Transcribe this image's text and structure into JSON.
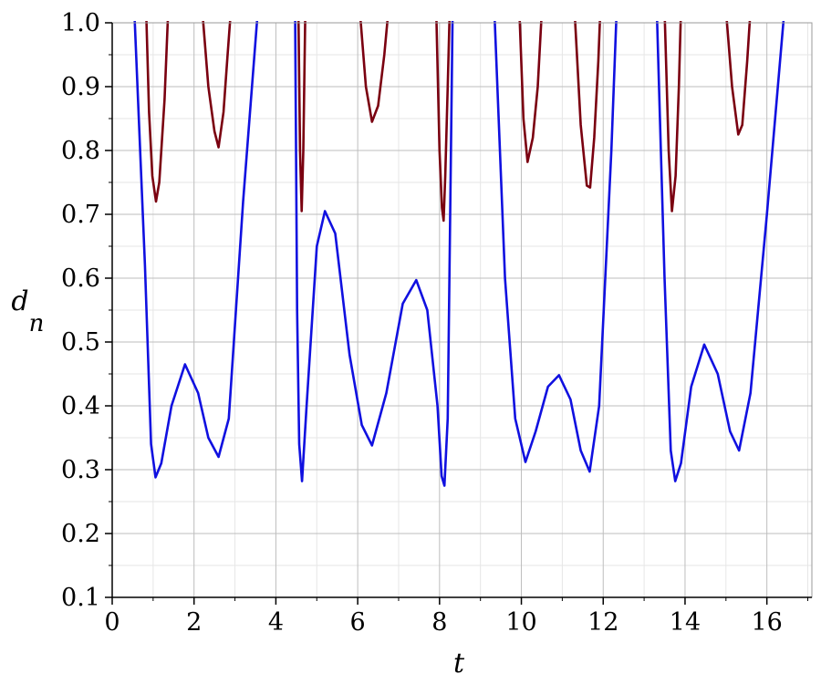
{
  "chart_data": {
    "type": "line",
    "title": "",
    "xlabel": "t",
    "ylabel": "d",
    "ylabel_subscript": "n",
    "xlim": [
      0,
      17.1
    ],
    "ylim": [
      0.1,
      1.0
    ],
    "xticks": [
      0,
      2,
      4,
      6,
      8,
      10,
      12,
      14,
      16
    ],
    "yticks": [
      0.1,
      0.2,
      0.3,
      0.4,
      0.5,
      0.6,
      0.7,
      0.8,
      0.9,
      1.0
    ],
    "xtick_labels": [
      "0",
      "2",
      "4",
      "6",
      "8",
      "10",
      "12",
      "14",
      "16"
    ],
    "ytick_labels": [
      "0.1",
      "0.2",
      "0.3",
      "0.4",
      "0.5",
      "0.6",
      "0.7",
      "0.8",
      "0.9",
      "1.0"
    ],
    "grid": true,
    "series": [
      {
        "color": "#1010e0",
        "points": [
          [
            0.54,
            1.02
          ],
          [
            0.8,
            0.62
          ],
          [
            0.95,
            0.34
          ],
          [
            1.06,
            0.288
          ],
          [
            1.2,
            0.31
          ],
          [
            1.45,
            0.4
          ],
          [
            1.78,
            0.465
          ],
          [
            2.1,
            0.42
          ],
          [
            2.35,
            0.35
          ],
          [
            2.6,
            0.32
          ],
          [
            2.85,
            0.38
          ],
          [
            3.2,
            0.72
          ],
          [
            3.56,
            1.02
          ],
          [
            4.47,
            1.02
          ],
          [
            4.52,
            0.55
          ],
          [
            4.57,
            0.34
          ],
          [
            4.64,
            0.282
          ],
          [
            4.75,
            0.4
          ],
          [
            5.0,
            0.65
          ],
          [
            5.2,
            0.705
          ],
          [
            5.45,
            0.67
          ],
          [
            5.8,
            0.48
          ],
          [
            6.1,
            0.37
          ],
          [
            6.35,
            0.338
          ],
          [
            6.7,
            0.42
          ],
          [
            7.1,
            0.56
          ],
          [
            7.43,
            0.597
          ],
          [
            7.7,
            0.55
          ],
          [
            7.95,
            0.4
          ],
          [
            8.05,
            0.29
          ],
          [
            8.12,
            0.275
          ],
          [
            8.2,
            0.38
          ],
          [
            8.32,
            1.02
          ],
          [
            9.34,
            1.02
          ],
          [
            9.6,
            0.6
          ],
          [
            9.85,
            0.38
          ],
          [
            10.1,
            0.312
          ],
          [
            10.35,
            0.36
          ],
          [
            10.65,
            0.43
          ],
          [
            10.92,
            0.448
          ],
          [
            11.2,
            0.41
          ],
          [
            11.45,
            0.33
          ],
          [
            11.67,
            0.297
          ],
          [
            11.9,
            0.4
          ],
          [
            12.2,
            0.8
          ],
          [
            12.33,
            1.02
          ],
          [
            13.31,
            1.02
          ],
          [
            13.5,
            0.6
          ],
          [
            13.65,
            0.33
          ],
          [
            13.76,
            0.282
          ],
          [
            13.9,
            0.31
          ],
          [
            14.15,
            0.43
          ],
          [
            14.47,
            0.496
          ],
          [
            14.8,
            0.45
          ],
          [
            15.1,
            0.36
          ],
          [
            15.32,
            0.33
          ],
          [
            15.6,
            0.42
          ],
          [
            16.0,
            0.7
          ],
          [
            16.43,
            1.02
          ]
        ]
      },
      {
        "color": "#7a0010",
        "segments": [
          [
            [
              0.83,
              1.02
            ],
            [
              0.9,
              0.86
            ],
            [
              0.98,
              0.76
            ],
            [
              1.07,
              0.72
            ],
            [
              1.15,
              0.75
            ],
            [
              1.28,
              0.88
            ],
            [
              1.37,
              1.02
            ]
          ],
          [
            [
              2.2,
              1.02
            ],
            [
              2.35,
              0.9
            ],
            [
              2.5,
              0.83
            ],
            [
              2.6,
              0.805
            ],
            [
              2.72,
              0.86
            ],
            [
              2.82,
              0.95
            ],
            [
              2.9,
              1.02
            ]
          ],
          [
            [
              4.55,
              1.02
            ],
            [
              4.59,
              0.8
            ],
            [
              4.63,
              0.705
            ],
            [
              4.67,
              0.8
            ],
            [
              4.72,
              1.02
            ]
          ],
          [
            [
              6.05,
              1.02
            ],
            [
              6.2,
              0.9
            ],
            [
              6.35,
              0.845
            ],
            [
              6.5,
              0.87
            ],
            [
              6.65,
              0.95
            ],
            [
              6.75,
              1.02
            ]
          ],
          [
            [
              7.92,
              1.02
            ],
            [
              8.0,
              0.8
            ],
            [
              8.06,
              0.71
            ],
            [
              8.1,
              0.69
            ],
            [
              8.14,
              0.76
            ],
            [
              8.2,
              0.9
            ],
            [
              8.25,
              1.02
            ]
          ],
          [
            [
              9.95,
              1.02
            ],
            [
              10.05,
              0.85
            ],
            [
              10.15,
              0.782
            ],
            [
              10.28,
              0.82
            ],
            [
              10.4,
              0.9
            ],
            [
              10.5,
              1.02
            ]
          ],
          [
            [
              11.3,
              1.02
            ],
            [
              11.45,
              0.84
            ],
            [
              11.6,
              0.745
            ],
            [
              11.68,
              0.742
            ],
            [
              11.78,
              0.82
            ],
            [
              11.88,
              0.94
            ],
            [
              11.93,
              1.02
            ]
          ],
          [
            [
              13.5,
              1.02
            ],
            [
              13.6,
              0.8
            ],
            [
              13.68,
              0.705
            ],
            [
              13.77,
              0.76
            ],
            [
              13.85,
              0.9
            ],
            [
              13.9,
              1.02
            ]
          ],
          [
            [
              15.0,
              1.02
            ],
            [
              15.15,
              0.9
            ],
            [
              15.3,
              0.825
            ],
            [
              15.4,
              0.84
            ],
            [
              15.52,
              0.94
            ],
            [
              15.6,
              1.02
            ]
          ]
        ]
      }
    ]
  }
}
